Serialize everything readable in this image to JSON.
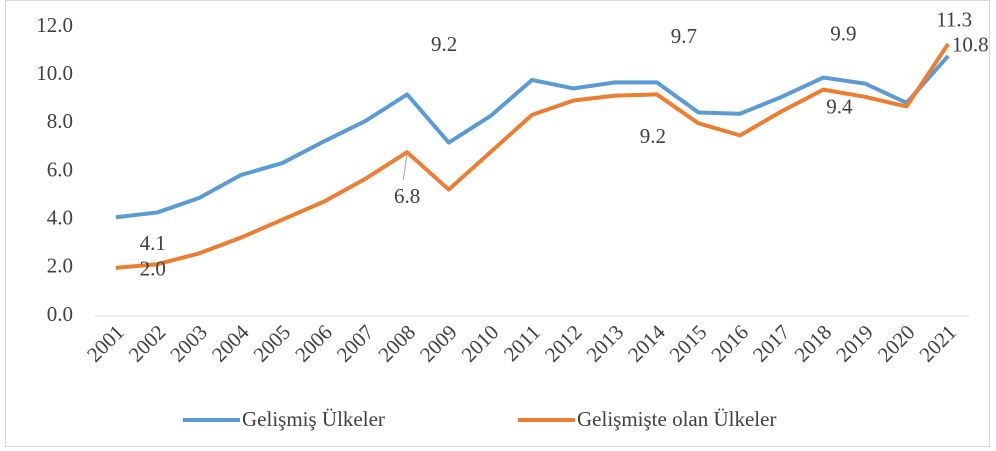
{
  "chart_data": {
    "type": "line",
    "categories": [
      "2001",
      "2002",
      "2003",
      "2004",
      "2005",
      "2006",
      "2007",
      "2008",
      "2009",
      "2010",
      "2011",
      "2012",
      "2013",
      "2014",
      "2015",
      "2016",
      "2017",
      "2018",
      "2019",
      "2020",
      "2021"
    ],
    "series": [
      {
        "name": "Gelişmiş Ülkeler",
        "color": "#5b9bd5",
        "values": [
          4.1,
          4.3,
          4.9,
          5.85,
          6.35,
          7.25,
          8.1,
          9.2,
          7.2,
          8.3,
          9.8,
          9.45,
          9.7,
          9.7,
          8.45,
          8.4,
          9.1,
          9.9,
          9.65,
          8.85,
          10.8
        ],
        "value_labels": [
          "4.1",
          null,
          null,
          null,
          null,
          null,
          null,
          "9.2",
          null,
          null,
          null,
          null,
          null,
          "9.7",
          null,
          null,
          null,
          "9.9",
          null,
          null,
          "10.8"
        ]
      },
      {
        "name": "Gelişmişte olan Ülkeler",
        "color": "#ed7d31",
        "values": [
          2.0,
          2.15,
          2.6,
          3.25,
          4.0,
          4.75,
          5.7,
          6.8,
          5.25,
          6.8,
          8.35,
          8.95,
          9.15,
          9.2,
          8.0,
          7.5,
          8.5,
          9.4,
          9.1,
          8.7,
          11.3
        ],
        "value_labels": [
          "2.0",
          null,
          null,
          null,
          null,
          null,
          null,
          "6.8",
          null,
          null,
          null,
          null,
          null,
          "9.2",
          null,
          null,
          null,
          "9.4",
          null,
          null,
          "11.3"
        ]
      }
    ],
    "ylim": [
      0,
      12
    ],
    "yticks": [
      {
        "value": 0,
        "label": "0.0"
      },
      {
        "value": 2,
        "label": "2.0"
      },
      {
        "value": 4,
        "label": "4.0"
      },
      {
        "value": 6,
        "label": "6.0"
      },
      {
        "value": 8,
        "label": "8.0"
      },
      {
        "value": 10,
        "label": "10.0"
      },
      {
        "value": 12,
        "label": "12.0"
      }
    ],
    "grid": false,
    "legend": "bottom"
  }
}
